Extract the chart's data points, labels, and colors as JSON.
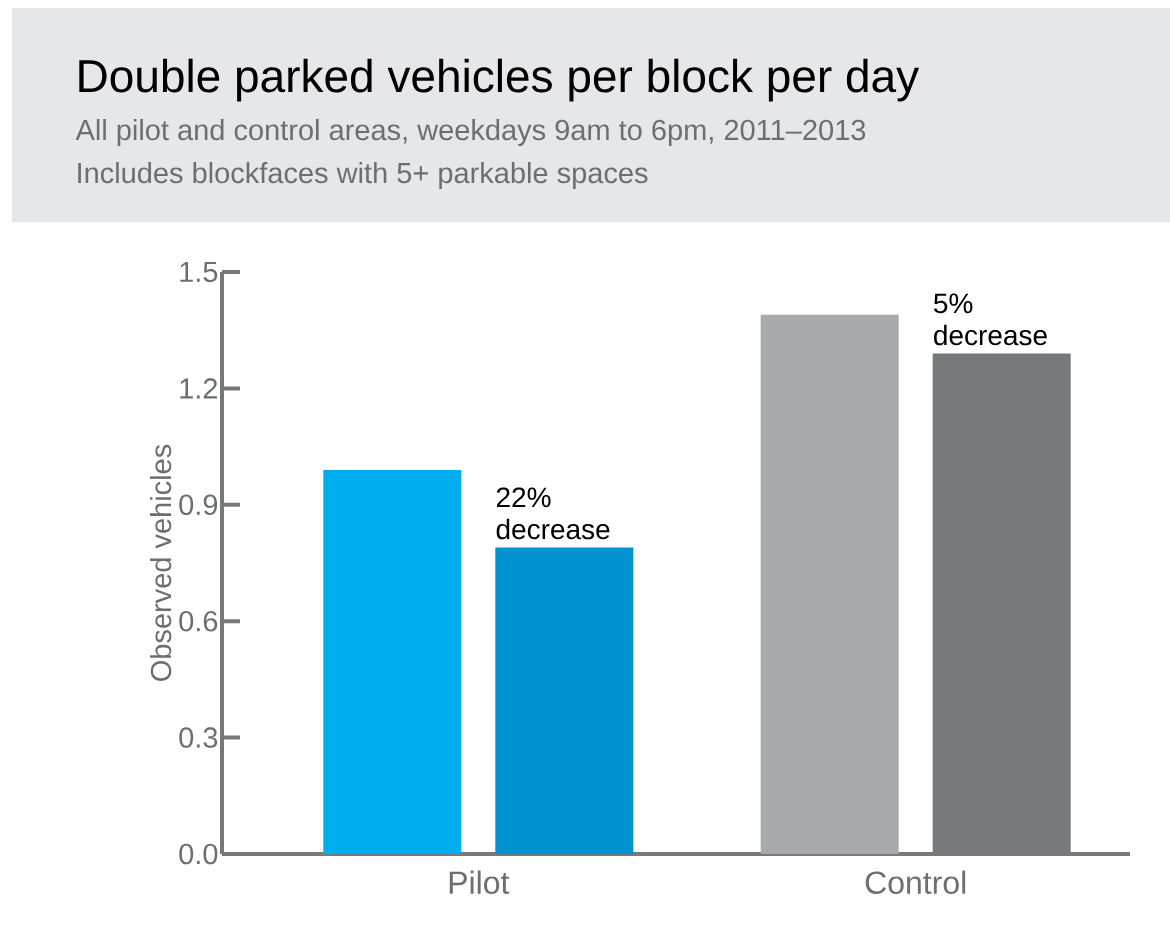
{
  "chart_data": {
    "type": "bar",
    "title": "Double parked vehicles per block per day",
    "subtitle": "All pilot and control areas, weekdays 9am to 6pm, 2011–2013",
    "ylabel": "Observed vehicles",
    "categories": [
      "Pilot",
      "Control"
    ],
    "series": [
      {
        "colors": [
          "#00aeef",
          "#a7a9ac"
        ],
        "values": [
          0.99,
          1.39
        ]
      },
      {
        "colors": [
          "#0093d0",
          "#77787b"
        ],
        "values": [
          0.79,
          1.29
        ]
      }
    ],
    "ylim": [
      0,
      1.5
    ],
    "yticks": [
      {
        "value": 0,
        "label": "0.0"
      },
      0.3,
      0.6,
      0.9,
      1.2,
      1.5
    ],
    "grid": false,
    "annotations": [
      "Includes blockfaces with 5+ parkable spaces",
      "22% decrease",
      "5% decrease"
    ]
  }
}
